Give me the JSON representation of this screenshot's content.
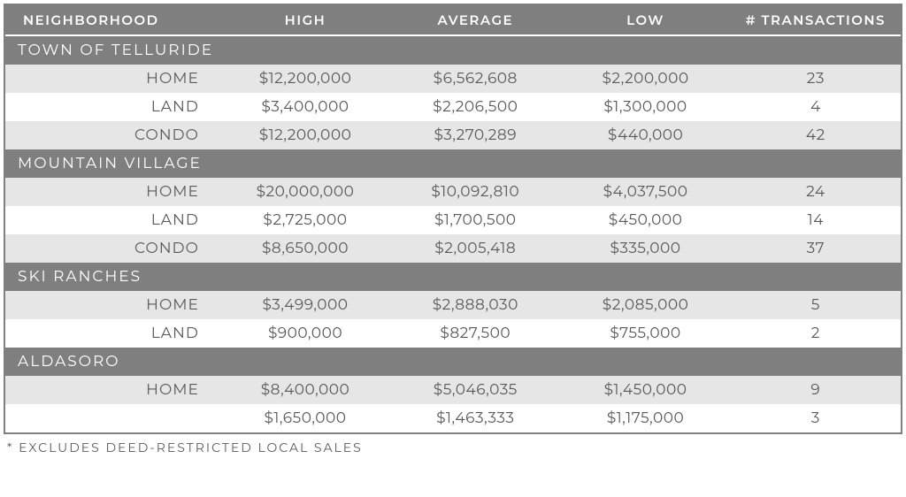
{
  "columns": {
    "neighborhood": "NEIGHBORHOOD",
    "high": "HIGH",
    "average": "AVERAGE",
    "low": "LOW",
    "transactions": "# TRANSACTIONS"
  },
  "sections": [
    {
      "name": "TOWN OF TELLURIDE",
      "rows": [
        {
          "type": "HOME",
          "high": "$12,200,000",
          "average": "$6,562,608",
          "low": "$2,200,000",
          "transactions": "23",
          "shade": true
        },
        {
          "type": "LAND",
          "high": "$3,400,000",
          "average": "$2,206,500",
          "low": "$1,300,000",
          "transactions": "4",
          "shade": false
        },
        {
          "type": "CONDO",
          "high": "$12,200,000",
          "average": "$3,270,289",
          "low": "$440,000",
          "transactions": "42",
          "shade": true
        }
      ]
    },
    {
      "name": "MOUNTAIN VILLAGE",
      "rows": [
        {
          "type": "HOME",
          "high": "$20,000,000",
          "average": "$10,092,810",
          "low": "$4,037,500",
          "transactions": "24",
          "shade": true
        },
        {
          "type": "LAND",
          "high": "$2,725,000",
          "average": "$1,700,500",
          "low": "$450,000",
          "transactions": "14",
          "shade": false
        },
        {
          "type": "CONDO",
          "high": "$8,650,000",
          "average": "$2,005,418",
          "low": "$335,000",
          "transactions": "37",
          "shade": true
        }
      ]
    },
    {
      "name": "SKI RANCHES",
      "rows": [
        {
          "type": "HOME",
          "high": "$3,499,000",
          "average": "$2,888,030",
          "low": "$2,085,000",
          "transactions": "5",
          "shade": true
        },
        {
          "type": "LAND",
          "high": "$900,000",
          "average": "$827,500",
          "low": "$755,000",
          "transactions": "2",
          "shade": false
        }
      ]
    },
    {
      "name": "ALDASORO",
      "rows": [
        {
          "type": "HOME",
          "high": "$8,400,000",
          "average": "$5,046,035",
          "low": "$1,450,000",
          "transactions": "9",
          "shade": true
        },
        {
          "type": "",
          "high": "$1,650,000",
          "average": "$1,463,333",
          "low": "$1,175,000",
          "transactions": "3",
          "shade": false
        }
      ]
    }
  ],
  "footnote": "* EXCLUDES DEED-RESTRICTED LOCAL SALES",
  "colors": {
    "header_bg": "#7f7f7f",
    "header_text": "#ffffff",
    "row_shade": "#e6e6e6",
    "row_plain": "#ffffff",
    "text": "#5a5a5a",
    "border": "#808080"
  },
  "typography": {
    "header_fontsize": 15,
    "section_fontsize": 17,
    "cell_fontsize": 17,
    "footnote_fontsize": 14,
    "letter_spacing_header": 1.5,
    "letter_spacing_section": 2
  }
}
